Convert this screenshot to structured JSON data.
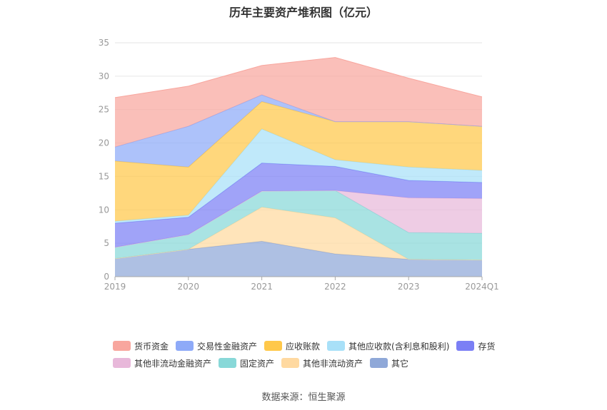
{
  "title": "历年主要资产堆积图（亿元）",
  "source": "数据来源：恒生聚源",
  "chart_data": {
    "type": "area",
    "stacked": true,
    "categories": [
      "2019",
      "2020",
      "2021",
      "2022",
      "2023",
      "2024Q1"
    ],
    "ylim": [
      0,
      35
    ],
    "yticks": [
      0,
      5,
      10,
      15,
      20,
      25,
      30,
      35
    ],
    "grid": true,
    "legend_position": "bottom",
    "series": [
      {
        "name": "其它",
        "color": "#8fa8d8",
        "values": [
          2.7,
          4.1,
          5.3,
          3.4,
          2.6,
          2.5
        ]
      },
      {
        "name": "其他非流动资产",
        "color": "#ffd9a0",
        "values": [
          0.0,
          0.0,
          5.1,
          5.4,
          0.0,
          0.0
        ]
      },
      {
        "name": "固定资产",
        "color": "#88d8d8",
        "values": [
          1.7,
          2.2,
          2.4,
          4.1,
          4.0,
          4.0
        ]
      },
      {
        "name": "其他非流动金融资产",
        "color": "#e8b8da",
        "values": [
          0.0,
          0.0,
          0.0,
          0.0,
          5.2,
          5.2
        ]
      },
      {
        "name": "存货",
        "color": "#7b7ff5",
        "values": [
          3.6,
          2.6,
          4.2,
          3.6,
          2.6,
          2.4
        ]
      },
      {
        "name": "其他应收款(含利息和股利)",
        "color": "#a8e0f8",
        "values": [
          0.3,
          0.3,
          5.1,
          1.0,
          2.0,
          1.8
        ]
      },
      {
        "name": "应收账款",
        "color": "#ffc84a",
        "values": [
          9.0,
          7.2,
          4.1,
          5.7,
          6.8,
          6.6
        ]
      },
      {
        "name": "交易性金融资产",
        "color": "#8eaaf8",
        "values": [
          2.1,
          6.1,
          1.0,
          0.0,
          0.0,
          0.0
        ]
      },
      {
        "name": "货币资金",
        "color": "#f8a69e",
        "values": [
          7.4,
          6.0,
          4.4,
          9.6,
          6.5,
          4.4
        ]
      }
    ]
  },
  "legend": {
    "row1": [
      {
        "label": "货币资金",
        "color": "#f8a69e"
      },
      {
        "label": "交易性金融资产",
        "color": "#8eaaf8"
      },
      {
        "label": "应收账款",
        "color": "#ffc84a"
      },
      {
        "label": "其他应收款(含利息和股利)",
        "color": "#a8e0f8"
      },
      {
        "label": "存货",
        "color": "#7b7ff5"
      }
    ],
    "row2": [
      {
        "label": "其他非流动金融资产",
        "color": "#e8b8da"
      },
      {
        "label": "固定资产",
        "color": "#88d8d8"
      },
      {
        "label": "其他非流动资产",
        "color": "#ffd9a0"
      },
      {
        "label": "其它",
        "color": "#8fa8d8"
      }
    ]
  }
}
